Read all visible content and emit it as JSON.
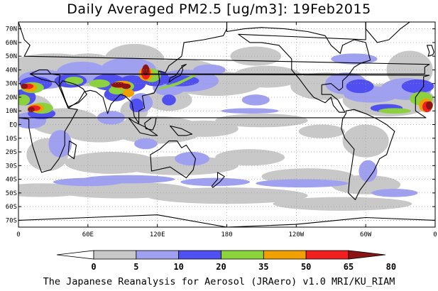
{
  "title": "Daily Averaged PM2.5 [ug/m3]: 19Feb2015",
  "caption": "The Japanese Reanalysis for Aerosol (JRAero) v1.0 MRI/KU_RIAM",
  "map": {
    "projection": "equirectangular",
    "lon_range": [
      0,
      360
    ],
    "lat_range": [
      -75,
      75
    ],
    "lat_ticks": [
      {
        "lat": 70,
        "label": "70N"
      },
      {
        "lat": 60,
        "label": "60N"
      },
      {
        "lat": 50,
        "label": "50N"
      },
      {
        "lat": 40,
        "label": "40N"
      },
      {
        "lat": 30,
        "label": "30N"
      },
      {
        "lat": 20,
        "label": "20N"
      },
      {
        "lat": 10,
        "label": "10N"
      },
      {
        "lat": 0,
        "label": "EQ"
      },
      {
        "lat": -10,
        "label": "10S"
      },
      {
        "lat": -20,
        "label": "20S"
      },
      {
        "lat": -30,
        "label": "30S"
      },
      {
        "lat": -40,
        "label": "40S"
      },
      {
        "lat": -50,
        "label": "50S"
      },
      {
        "lat": -60,
        "label": "60S"
      },
      {
        "lat": -70,
        "label": "70S"
      }
    ],
    "lon_ticks": [
      {
        "lon": 0,
        "label": "0"
      },
      {
        "lon": 60,
        "label": "60E"
      },
      {
        "lon": 120,
        "label": "120E"
      },
      {
        "lon": 180,
        "label": "180"
      },
      {
        "lon": 240,
        "label": "120W"
      },
      {
        "lon": 300,
        "label": "60W"
      },
      {
        "lon": 360,
        "label": "0"
      }
    ],
    "grid": true,
    "colors": {
      "c0": "#ffffff",
      "c5": "#c8c8c8",
      "c10": "#a0a0f0",
      "c20": "#5050f0",
      "c35": "#8cd23c",
      "c50": "#f0a000",
      "c65": "#f02020",
      "c80": "#8c1414",
      "coast": "#000000"
    }
  },
  "colorbar": {
    "levels": [
      "0",
      "5",
      "10",
      "20",
      "35",
      "50",
      "65",
      "80"
    ],
    "colors": [
      "#ffffff",
      "#c8c8c8",
      "#a0a0f0",
      "#5050f0",
      "#8cd23c",
      "#f0a000",
      "#f02020",
      "#8c1414"
    ]
  }
}
